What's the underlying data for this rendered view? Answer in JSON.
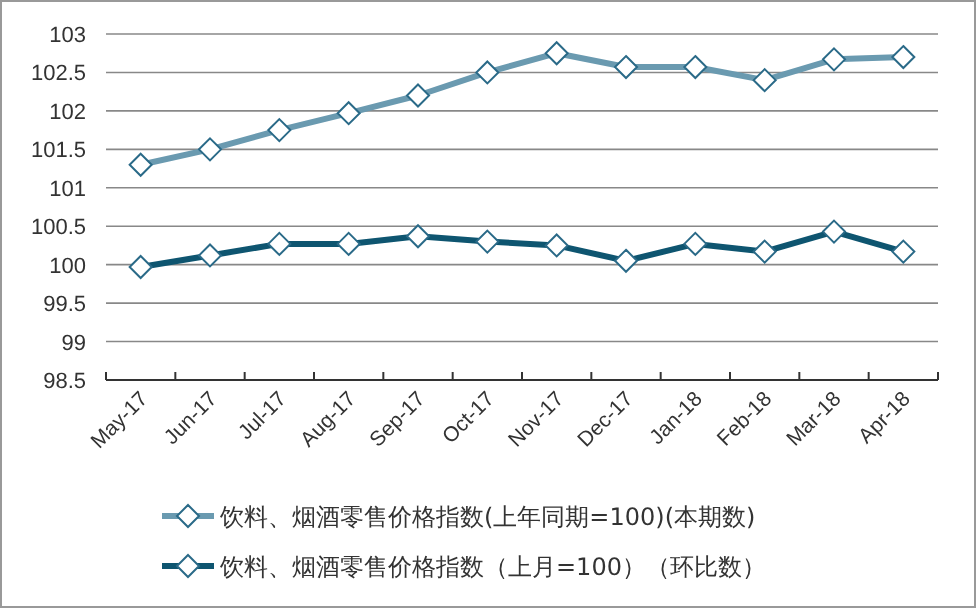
{
  "chart_data": {
    "type": "line",
    "categories": [
      "May-17",
      "Jun-17",
      "Jul-17",
      "Aug-17",
      "Sep-17",
      "Oct-17",
      "Nov-17",
      "Dec-17",
      "Jan-18",
      "Feb-18",
      "Mar-18",
      "Apr-18"
    ],
    "series": [
      {
        "name": "饮料、烟酒零售价格指数(上年同期=100)(本期数)",
        "color": "#6a9ab0",
        "values": [
          101.3,
          101.5,
          101.75,
          101.97,
          102.2,
          102.5,
          102.75,
          102.57,
          102.57,
          102.4,
          102.67,
          102.7
        ]
      },
      {
        "name": "饮料、烟酒零售价格指数（上月=100）（环比数）",
        "color": "#0e5570",
        "values": [
          99.97,
          100.12,
          100.27,
          100.27,
          100.37,
          100.3,
          100.25,
          100.05,
          100.27,
          100.17,
          100.43,
          100.17
        ]
      }
    ],
    "ylim": [
      98.5,
      103
    ],
    "yticks": [
      98.5,
      99,
      99.5,
      100,
      100.5,
      101,
      101.5,
      102,
      102.5,
      103
    ],
    "grid": "y",
    "legend": "bottom",
    "marker": "diamond",
    "line_style": "solid"
  }
}
